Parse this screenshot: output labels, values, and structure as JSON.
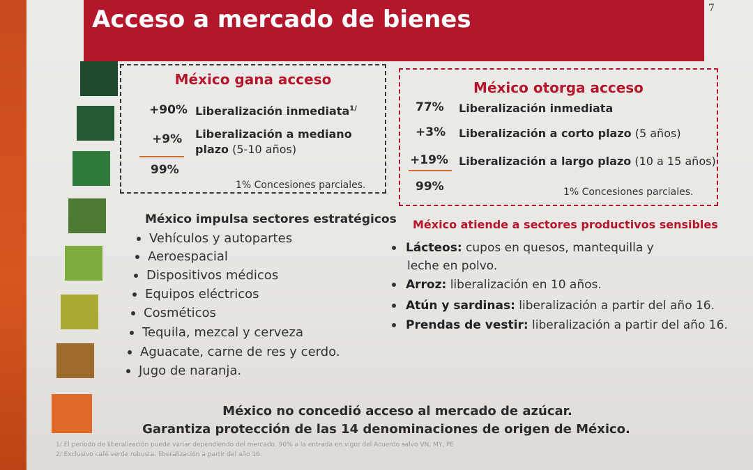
{
  "page": {
    "number": "7",
    "title": "Acceso a mercado de bienes"
  },
  "colors": {
    "banner": "#b4162c",
    "accent_red": "#b4162c",
    "underline": "#d2692f"
  },
  "swatches": [
    "#1f4a2b",
    "#245a33",
    "#2f7a3c",
    "#4f7a34",
    "#7cad3e",
    "#a8aa34",
    "#9c6a2a",
    "#e0692a"
  ],
  "left_box": {
    "heading": "México gana acceso",
    "rows": [
      {
        "pct": "+90%",
        "label": "Liberalización inmediata",
        "sup": "1/"
      },
      {
        "pct": "+9%",
        "label": "Liberalización a mediano",
        "label2": "plazo",
        "label2_normal": " (5-10  años)"
      },
      {
        "pct": "99%",
        "label": ""
      }
    ],
    "note": "1%  Concesiones parciales."
  },
  "right_box": {
    "heading": "México otorga acceso",
    "rows": [
      {
        "pct": "77%",
        "label": "Liberalización inmediata",
        "extra": ""
      },
      {
        "pct": "+3%",
        "label": "Liberalización a corto plazo",
        "extra": " (5 años)"
      },
      {
        "pct": "+19%",
        "label": "Liberalización a largo plazo",
        "extra": " (10 a 15 años)"
      },
      {
        "pct": "99%",
        "label": "",
        "extra": ""
      }
    ],
    "note": "1%  Concesiones parciales."
  },
  "left_section": {
    "title": "México impulsa sectores estratégicos",
    "items": [
      "Vehículos y autopartes",
      "Aeroespacial",
      "Dispositivos médicos",
      "Equipos eléctricos",
      "Cosméticos",
      "Tequila, mezcal y cerveza",
      "Aguacate, carne de res y cerdo.",
      "Jugo de naranja."
    ]
  },
  "right_section": {
    "title": "México atiende a sectores productivos sensibles",
    "items": [
      {
        "bold": "Lácteos:",
        "text": " cupos en quesos, mantequilla y",
        "cont": "leche en polvo."
      },
      {
        "bold": "Arroz:",
        "text": " liberalización en 10 años.",
        "cont": ""
      },
      {
        "bold": "Atún y sardinas:",
        "text": " liberalización a partir del año 16.",
        "cont": ""
      },
      {
        "bold": "Prendas de vestir:",
        "text": " liberalización a partir del año 16.",
        "cont": ""
      }
    ]
  },
  "footer": {
    "line1": "México no concedió acceso al mercado de azúcar.",
    "line2": "Garantiza protección de las 14 denominaciones de origen de México."
  },
  "footnotes": [
    "1/ El periodo de liberalización puede variar dependiendo del mercado. 90% a la entrada en vigor del Acuerdo salvo VN, MY, PE",
    "2/ Exclusivo café verde robusta: liberalización a partir del año 16."
  ]
}
